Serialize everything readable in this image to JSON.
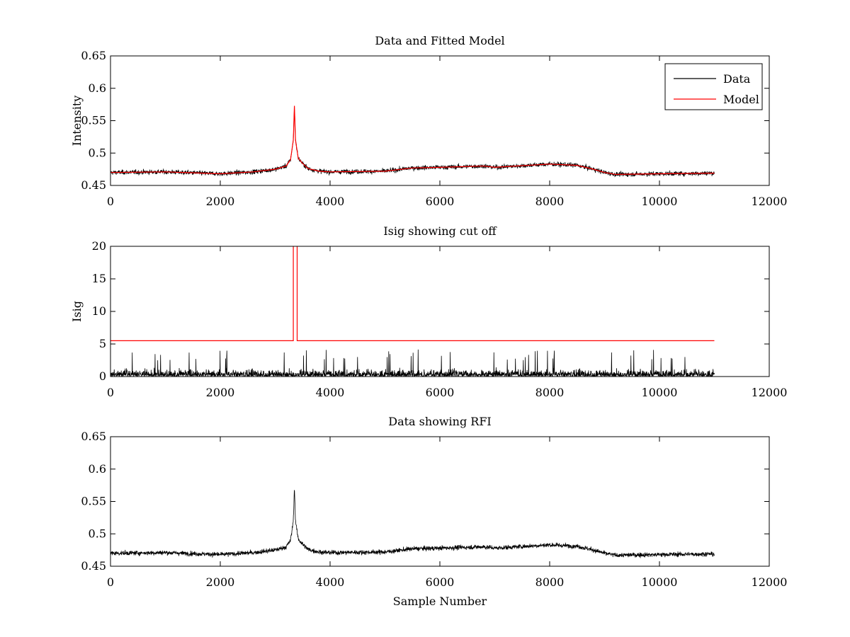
{
  "chart_data": [
    {
      "type": "line",
      "title": "Data and Fitted Model",
      "xlabel": "",
      "ylabel": "Intensity",
      "xlim": [
        0,
        12000
      ],
      "ylim": [
        0.45,
        0.65
      ],
      "xticks": [
        0,
        2000,
        4000,
        6000,
        8000,
        10000,
        12000
      ],
      "xtick_labels": [
        "0",
        "2000",
        "4000",
        "6000",
        "8000",
        "10000",
        "12000"
      ],
      "yticks": [
        0.45,
        0.5,
        0.55,
        0.6,
        0.65
      ],
      "ytick_labels": [
        "0.45",
        "0.5",
        "0.55",
        "0.6",
        "0.65"
      ],
      "legend": {
        "position": "top-right",
        "entries": [
          "Data",
          "Model"
        ]
      },
      "grid": false,
      "series": [
        {
          "name": "Data",
          "color": "#000000",
          "kind": "noisy",
          "noise_amplitude": 0.006,
          "x": [
            0,
            1000,
            2000,
            2600,
            3000,
            3200,
            3280,
            3330,
            3350,
            3370,
            3420,
            3500,
            3600,
            3800,
            4000,
            5000,
            5500,
            6000,
            6800,
            7000,
            8000,
            8500,
            8800,
            9000,
            9200,
            10000,
            11000
          ],
          "y": [
            0.47,
            0.471,
            0.468,
            0.471,
            0.475,
            0.48,
            0.49,
            0.52,
            0.573,
            0.52,
            0.492,
            0.484,
            0.476,
            0.472,
            0.471,
            0.472,
            0.477,
            0.478,
            0.48,
            0.478,
            0.483,
            0.481,
            0.475,
            0.47,
            0.467,
            0.468,
            0.469
          ]
        },
        {
          "name": "Model",
          "color": "#ff0000",
          "kind": "line",
          "x": [
            0,
            1000,
            2000,
            2600,
            3000,
            3200,
            3280,
            3330,
            3350,
            3370,
            3420,
            3500,
            3600,
            3800,
            4000,
            5000,
            5500,
            6000,
            6800,
            7000,
            8000,
            8500,
            8800,
            9000,
            9200,
            10000,
            11000
          ],
          "y": [
            0.47,
            0.471,
            0.468,
            0.471,
            0.475,
            0.48,
            0.49,
            0.52,
            0.573,
            0.52,
            0.492,
            0.484,
            0.476,
            0.472,
            0.471,
            0.472,
            0.477,
            0.478,
            0.48,
            0.478,
            0.483,
            0.481,
            0.475,
            0.47,
            0.467,
            0.468,
            0.469
          ]
        }
      ]
    },
    {
      "type": "line",
      "title": "Isig showing cut off",
      "xlabel": "",
      "ylabel": "Isig",
      "xlim": [
        0,
        12000
      ],
      "ylim": [
        0,
        20
      ],
      "xticks": [
        0,
        2000,
        4000,
        6000,
        8000,
        10000,
        12000
      ],
      "xtick_labels": [
        "0",
        "2000",
        "4000",
        "6000",
        "8000",
        "10000",
        "12000"
      ],
      "yticks": [
        0,
        5,
        10,
        15,
        20
      ],
      "ytick_labels": [
        "0",
        "5",
        "10",
        "15",
        "20"
      ],
      "grid": false,
      "series": [
        {
          "color": "#000000",
          "kind": "abs-noise",
          "noise_scale": 1.0,
          "spike_max": 4.2,
          "x": [
            0,
            11000
          ],
          "y": [
            0,
            0
          ]
        },
        {
          "color": "#ff0000",
          "kind": "line",
          "x": [
            0,
            3330,
            3330,
            3400,
            3400,
            11000
          ],
          "y": [
            5.5,
            5.5,
            20.5,
            20.5,
            5.5,
            5.5
          ]
        }
      ]
    },
    {
      "type": "line",
      "title": "Data showing RFI",
      "xlabel": "Sample Number",
      "ylabel": "",
      "xlim": [
        0,
        12000
      ],
      "ylim": [
        0.45,
        0.65
      ],
      "xticks": [
        0,
        2000,
        4000,
        6000,
        8000,
        10000,
        12000
      ],
      "xtick_labels": [
        "0",
        "2000",
        "4000",
        "6000",
        "8000",
        "10000",
        "12000"
      ],
      "yticks": [
        0.45,
        0.5,
        0.55,
        0.6,
        0.65
      ],
      "ytick_labels": [
        "0.45",
        "0.5",
        "0.55",
        "0.6",
        "0.65"
      ],
      "grid": false,
      "series": [
        {
          "color": "#000000",
          "kind": "noisy",
          "noise_amplitude": 0.006,
          "x": [
            0,
            1000,
            2000,
            2600,
            3000,
            3200,
            3280,
            3330,
            3350,
            3370,
            3420,
            3500,
            3600,
            3800,
            4000,
            5000,
            5500,
            6000,
            6800,
            7000,
            8000,
            8500,
            8800,
            9000,
            9200,
            10000,
            11000
          ],
          "y": [
            0.47,
            0.471,
            0.468,
            0.471,
            0.475,
            0.48,
            0.49,
            0.52,
            0.573,
            0.52,
            0.492,
            0.484,
            0.476,
            0.472,
            0.471,
            0.472,
            0.477,
            0.478,
            0.48,
            0.478,
            0.483,
            0.481,
            0.475,
            0.47,
            0.467,
            0.468,
            0.469
          ]
        }
      ]
    }
  ]
}
